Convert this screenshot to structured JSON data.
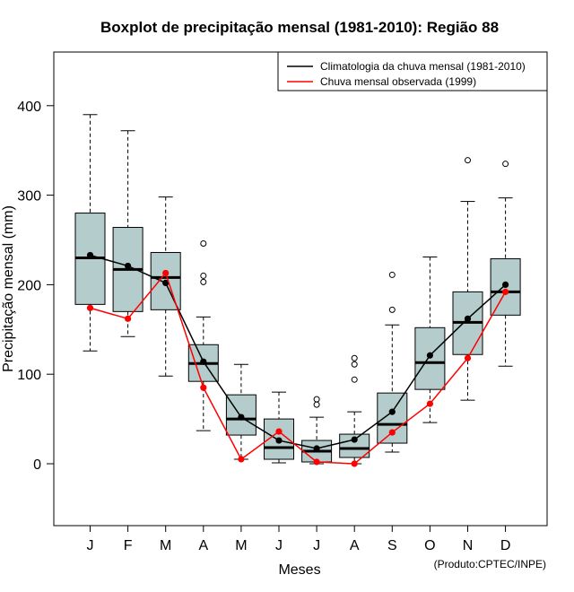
{
  "chart_data": {
    "type": "boxplot",
    "title": "Boxplot de precipitação mensal (1981-2010): Região 88",
    "xlabel": "Meses",
    "ylabel": "Precipitação mensal (mm)",
    "ylim": [
      -70,
      470
    ],
    "yticks": [
      0,
      100,
      200,
      300,
      400
    ],
    "categories": [
      "J",
      "F",
      "M",
      "A",
      "M",
      "J",
      "J",
      "A",
      "S",
      "O",
      "N",
      "D"
    ],
    "boxes": [
      {
        "month": "J",
        "whisker_low": 126,
        "q1": 178,
        "median": 230,
        "q3": 280,
        "whisker_high": 390,
        "outliers": []
      },
      {
        "month": "F",
        "whisker_low": 142,
        "q1": 170,
        "median": 217,
        "q3": 264,
        "whisker_high": 372,
        "outliers": []
      },
      {
        "month": "M",
        "whisker_low": 98,
        "q1": 172,
        "median": 208,
        "q3": 236,
        "whisker_high": 298,
        "outliers": []
      },
      {
        "month": "A",
        "whisker_low": 37,
        "q1": 92,
        "median": 112,
        "q3": 133,
        "whisker_high": 164,
        "outliers": [
          203,
          210,
          246
        ]
      },
      {
        "month": "M",
        "whisker_low": 5,
        "q1": 32,
        "median": 50,
        "q3": 77,
        "whisker_high": 111,
        "outliers": []
      },
      {
        "month": "J",
        "whisker_low": 1,
        "q1": 5,
        "median": 18,
        "q3": 50,
        "whisker_high": 80,
        "outliers": []
      },
      {
        "month": "J",
        "whisker_low": 0,
        "q1": 2,
        "median": 14,
        "q3": 26,
        "whisker_high": 52,
        "outliers": [
          66,
          72
        ]
      },
      {
        "month": "A",
        "whisker_low": 0,
        "q1": 7,
        "median": 17,
        "q3": 33,
        "whisker_high": 58,
        "outliers": [
          94,
          111,
          118
        ]
      },
      {
        "month": "S",
        "whisker_low": 13,
        "q1": 23,
        "median": 44,
        "q3": 79,
        "whisker_high": 155,
        "outliers": [
          172,
          211
        ]
      },
      {
        "month": "O",
        "whisker_low": 46,
        "q1": 83,
        "median": 113,
        "q3": 152,
        "whisker_high": 231,
        "outliers": []
      },
      {
        "month": "N",
        "whisker_low": 71,
        "q1": 122,
        "median": 158,
        "q3": 192,
        "whisker_high": 293,
        "outliers": [
          339
        ]
      },
      {
        "month": "D",
        "whisker_low": 109,
        "q1": 166,
        "median": 192,
        "q3": 229,
        "whisker_high": 297,
        "outliers": [
          335
        ]
      }
    ],
    "series": [
      {
        "name": "Climatologia da chuva mensal (1981-2010)",
        "color": "#000000",
        "values": [
          233,
          221,
          202,
          114,
          52,
          26,
          17,
          27,
          58,
          121,
          162,
          200
        ]
      },
      {
        "name": "Chuva mensal observada (1999)",
        "color": "#ff0000",
        "values": [
          174,
          162,
          213,
          85,
          5,
          36,
          2,
          0,
          35,
          67,
          118,
          192
        ]
      }
    ],
    "box_fill": "#b4cccc",
    "legend_position": "top-right",
    "credit": "(Produto:CPTEC/INPE)"
  }
}
